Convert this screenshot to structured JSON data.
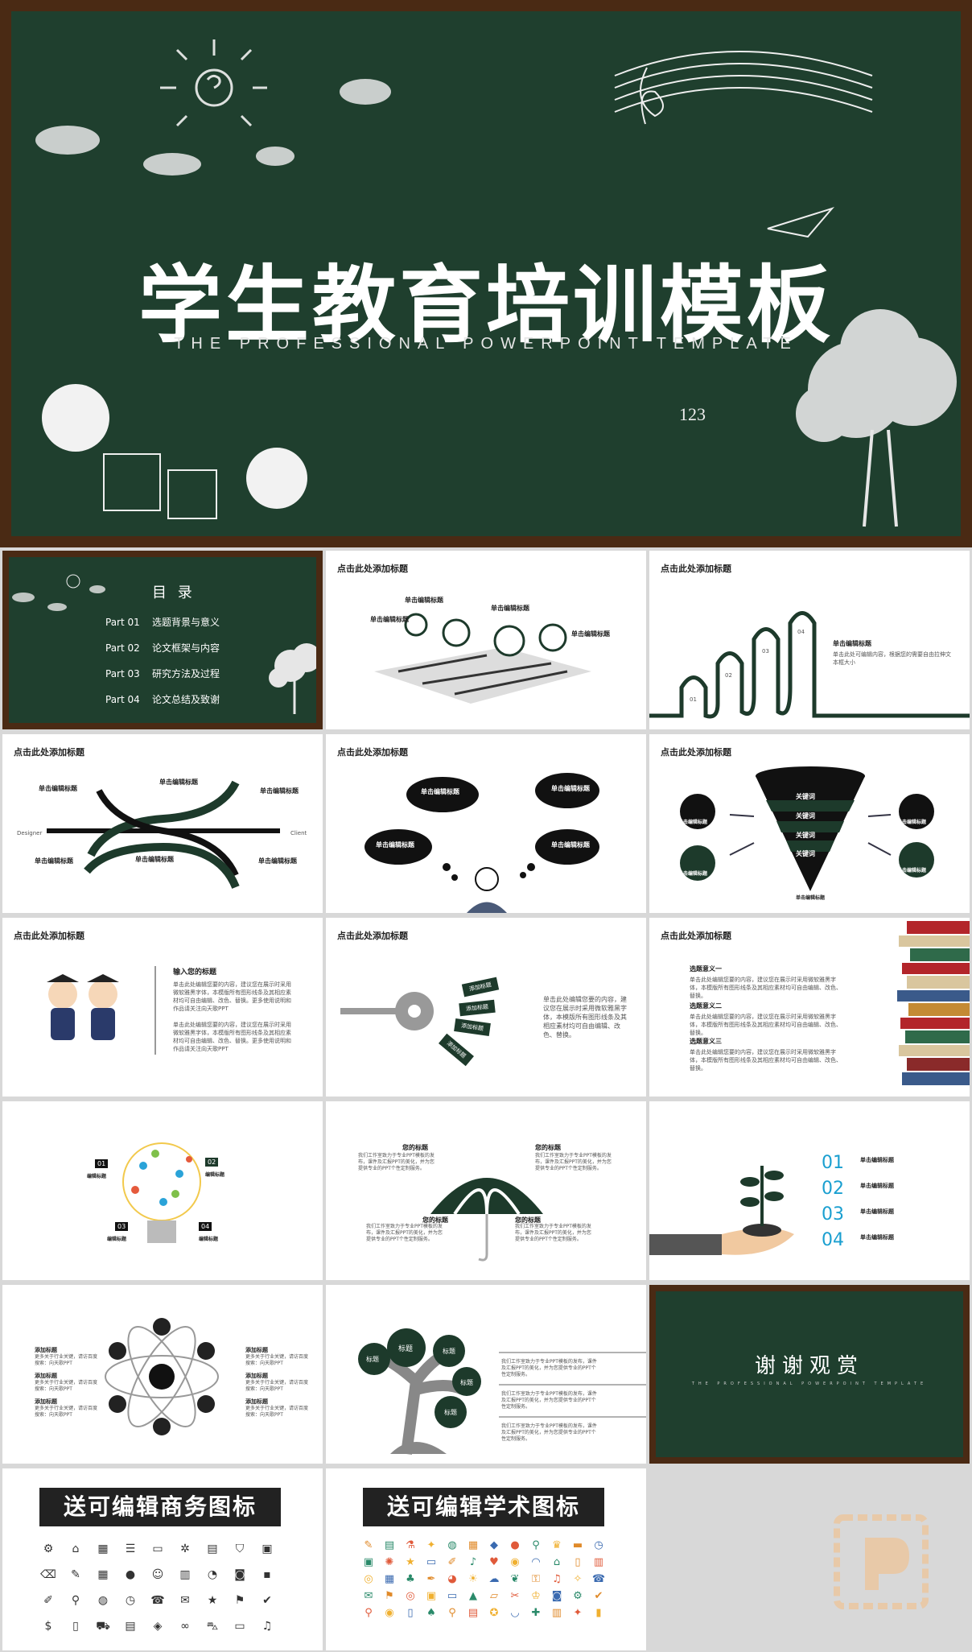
{
  "hero": {
    "title": "学生教育培训模板",
    "subtitle": "THE   PROFESSIONAL   POWERPOINT   TEMPLATE",
    "number": "123"
  },
  "toc": {
    "heading": "目 录",
    "items": [
      {
        "part": "Part 01",
        "text": "选题背景与意义"
      },
      {
        "part": "Part 02",
        "text": "论文框架与内容"
      },
      {
        "part": "Part 03",
        "text": "研究方法及过程"
      },
      {
        "part": "Part 04",
        "text": "论文总结及致谢"
      }
    ]
  },
  "common": {
    "slide_title": "点击此处添加标题",
    "edit_title": "单击编辑标题",
    "edit_body": "单击此处可编辑内容，根据您的需要自由拉伸文本框大小",
    "add_title": "添加标题",
    "add_body": "更多关于行业关键，请访百度搜索：向天歌PPT"
  },
  "slide3": {
    "nums": [
      "01",
      "02",
      "03",
      "04"
    ]
  },
  "slide4": {
    "left": "Designer",
    "right": "Client"
  },
  "slide6": {
    "keyword": "关键词"
  },
  "slide7": {
    "title": "输入您的标题",
    "body": "单击此处编辑您要的内容，建议您在展示时采用微软雅黑字体，本模版所有图形线条及其相应素材均可自由编辑、改色、替换。更多使用说明和作品请关注向天歌PPT"
  },
  "slide8": {
    "tags": [
      "添加标题",
      "添加标题",
      "添加标题",
      "添加标题"
    ],
    "body": "单击此处编辑您要的内容，建议您在展示时采用微软雅黑字体，本模版所有图形线条及其相应素材均可自由编辑、改色、替换。"
  },
  "slide9": {
    "items": [
      {
        "title": "选题意义一",
        "body": "单击此处编辑您要的内容，建议您在展示时采用微软雅黑字体，本模版所有图形线条及其相应素材均可自由编辑、改色、替换。"
      },
      {
        "title": "选题意义二",
        "body": "单击此处编辑您要的内容，建议您在展示时采用微软雅黑字体，本模版所有图形线条及其相应素材均可自由编辑、改色、替换。"
      },
      {
        "title": "选题意义三",
        "body": "单击此处编辑您要的内容，建议您在展示时采用微软雅黑字体，本模版所有图形线条及其相应素材均可自由编辑、改色、替换。"
      }
    ]
  },
  "slide10": {
    "nums": [
      "01",
      "02",
      "03",
      "04"
    ],
    "label": "编辑标题"
  },
  "slide11": {
    "label": "您的标题",
    "body": "我们工作室致力于专业PPT模板的发布，课件及汇报PPT的美化，并为您提供专业的PPT个性定制服务。"
  },
  "slide12": {
    "nums": [
      "01",
      "02",
      "03",
      "04"
    ]
  },
  "slide14": {
    "label": "标题",
    "body": "我们工作室致力于专业PPT模板的发布，课件及汇报PPT的美化，并为您提供专业的PPT个性定制服务。"
  },
  "thanks": {
    "title": "谢谢观赏",
    "subtitle": "THE PROFESSIONAL POWERPOINT TEMPLATE"
  },
  "banner_business": "送可编辑商务图标",
  "banner_academic": "送可编辑学术图标",
  "colors": {
    "board": "#1f3f2e",
    "frame": "#4a2a14",
    "accent_blue": "#1a9fd0",
    "dark_green": "#1d3a2b"
  }
}
